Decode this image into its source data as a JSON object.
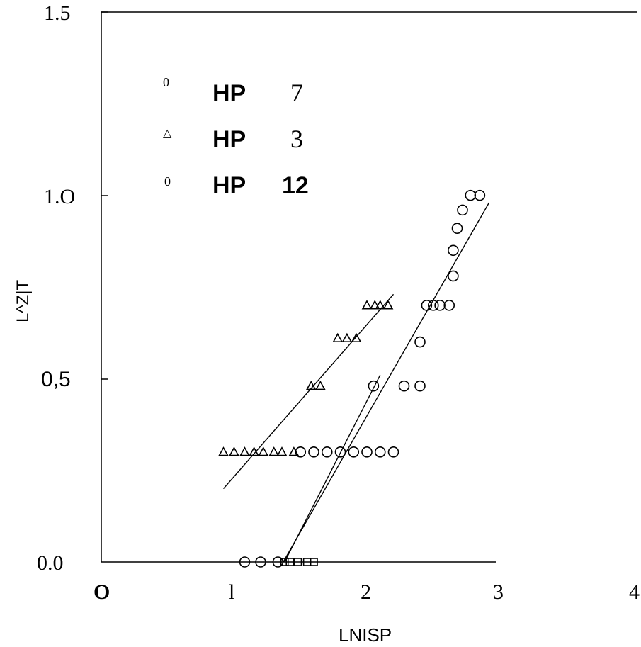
{
  "chart_data": {
    "type": "scatter",
    "xlabel": "LNISP",
    "ylabel": "L^Z|T",
    "xlim": [
      0,
      4
    ],
    "ylim": [
      0,
      1.5
    ],
    "x_ticks": [
      "O",
      "l",
      "2",
      "3",
      "4"
    ],
    "y_ticks": [
      "0.0",
      "0,5",
      "1.O",
      "1.5"
    ],
    "legend": [
      {
        "symbol": "0",
        "name": "HP",
        "number": "7",
        "marker": "circle"
      },
      {
        "symbol": "△",
        "name": "HP",
        "number": "3",
        "marker": "triangle"
      },
      {
        "symbol": "0",
        "name": "HP",
        "number": "12",
        "marker": "circle"
      }
    ],
    "series": [
      {
        "name": "HP 3",
        "marker": "triangle",
        "x": [
          0.92,
          1.0,
          1.08,
          1.15,
          1.22,
          1.3,
          1.36,
          1.45,
          1.58,
          1.65,
          1.78,
          1.85,
          1.92,
          2.0,
          2.06,
          2.1,
          2.16
        ],
        "y": [
          0.3,
          0.3,
          0.3,
          0.3,
          0.3,
          0.3,
          0.3,
          0.3,
          0.48,
          0.48,
          0.61,
          0.61,
          0.61,
          0.7,
          0.7,
          0.7,
          0.7
        ]
      },
      {
        "name": "HP 7",
        "marker": "circle",
        "x": [
          1.08,
          1.2,
          1.33,
          1.5,
          1.6,
          1.7,
          1.8,
          1.9,
          2.0,
          2.1,
          2.2,
          2.05,
          2.28,
          2.4,
          2.45,
          2.5,
          2.55,
          2.62,
          2.4,
          2.65,
          2.65,
          2.68,
          2.72,
          2.78,
          2.85
        ],
        "y": [
          0.0,
          0.0,
          0.0,
          0.3,
          0.3,
          0.3,
          0.3,
          0.3,
          0.3,
          0.3,
          0.3,
          0.48,
          0.48,
          0.48,
          0.7,
          0.7,
          0.7,
          0.7,
          0.6,
          0.78,
          0.85,
          0.91,
          0.96,
          1.0,
          1.0
        ]
      },
      {
        "name": "HP 12",
        "marker": "square",
        "x": [
          1.38,
          1.42,
          1.48,
          1.55,
          1.6
        ],
        "y": [
          0.0,
          0.0,
          0.0,
          0.0,
          0.0
        ]
      }
    ],
    "lines": [
      {
        "x": [
          0.92,
          2.2
        ],
        "y": [
          0.2,
          0.73
        ]
      },
      {
        "x": [
          1.37,
          2.92
        ],
        "y": [
          0.0,
          0.98
        ]
      },
      {
        "x": [
          1.38,
          2.1
        ],
        "y": [
          0.0,
          0.51
        ]
      }
    ],
    "grid": false
  }
}
